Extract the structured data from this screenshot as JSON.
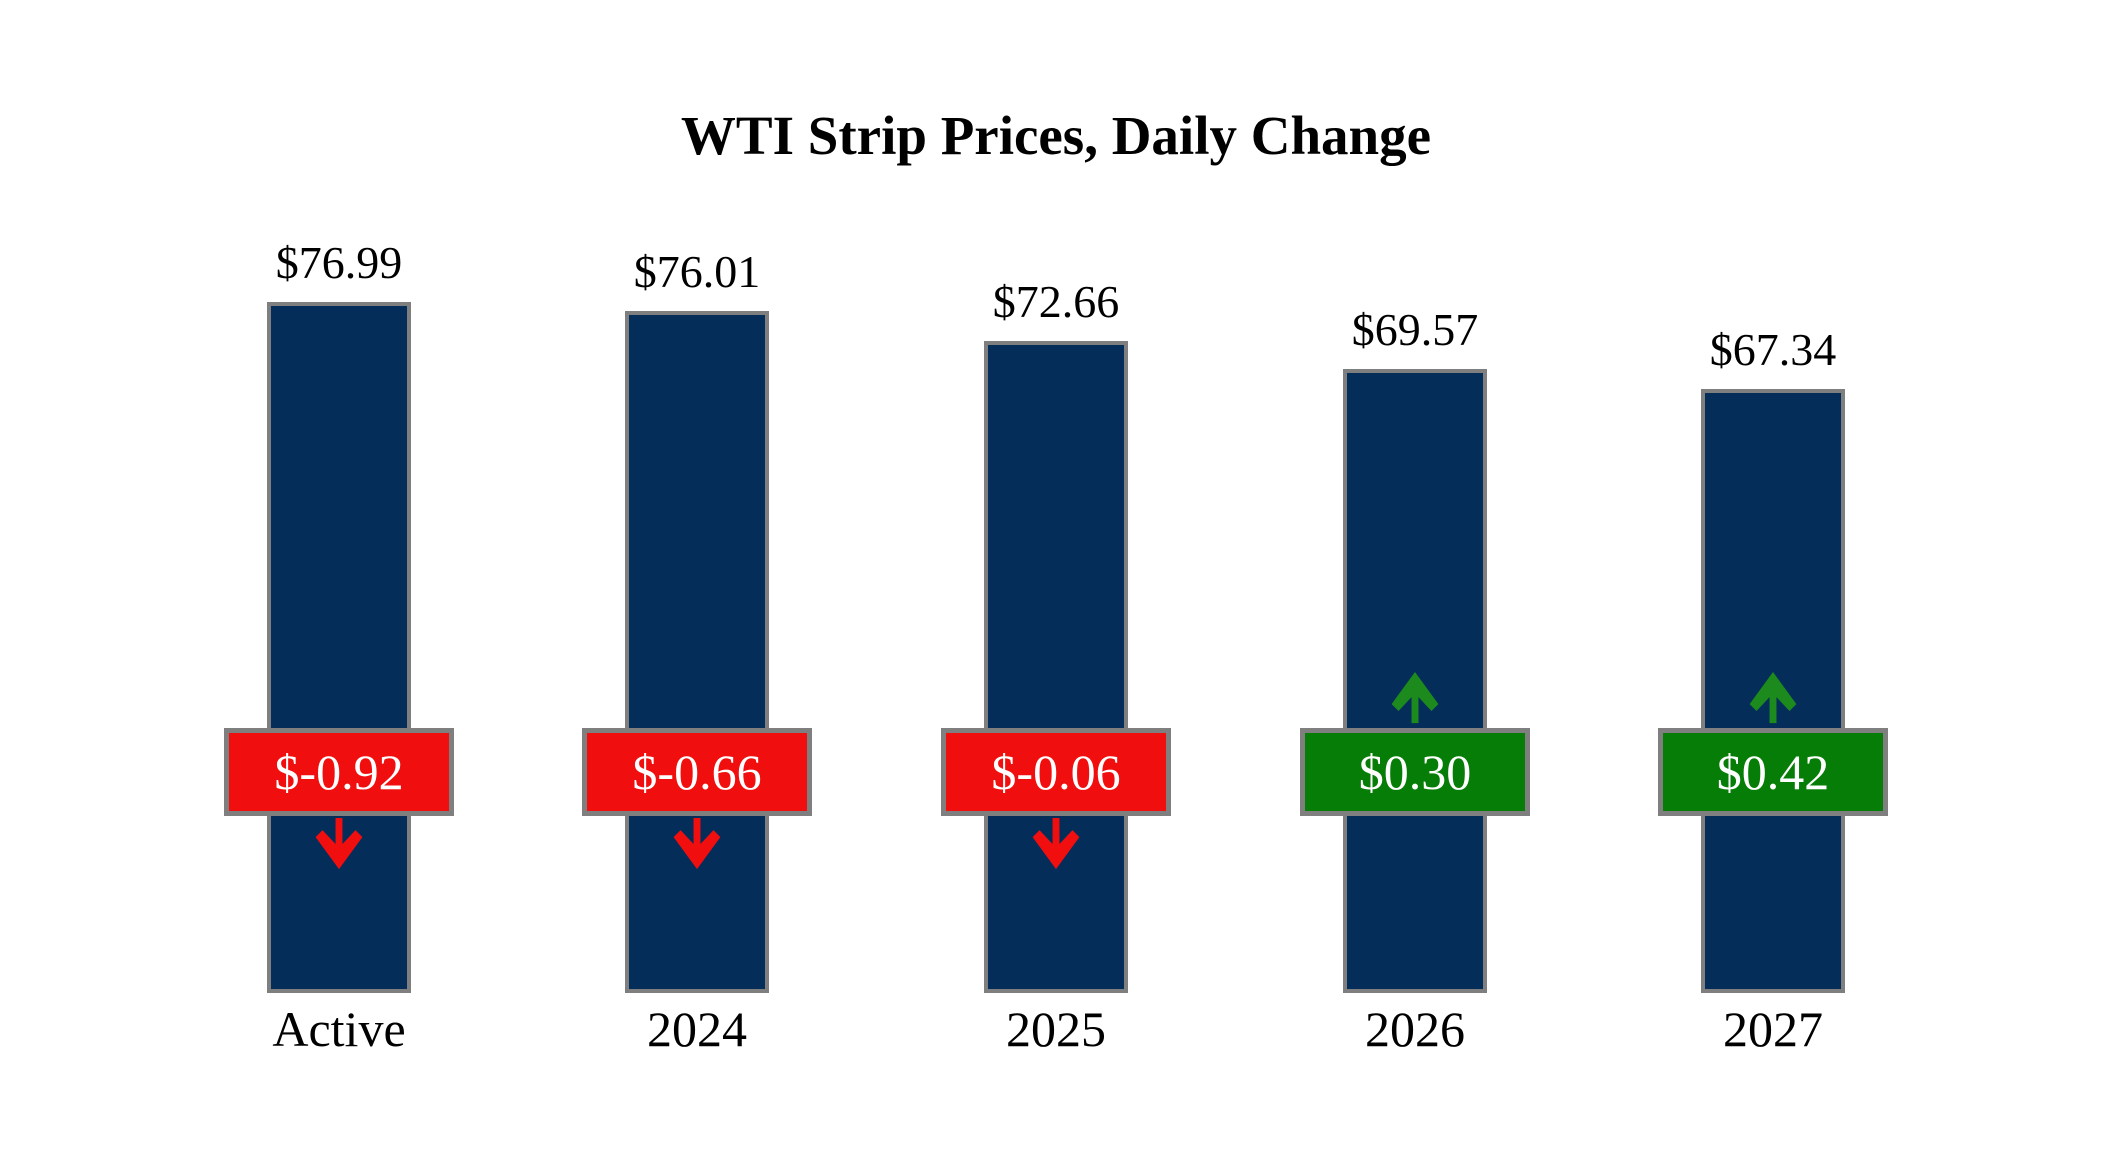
{
  "title": "WTI Strip Prices, Daily Change",
  "chart_data": {
    "type": "bar",
    "title": "WTI Strip Prices, Daily Change",
    "categories": [
      "Active",
      "2024",
      "2025",
      "2026",
      "2027"
    ],
    "series": [
      {
        "name": "WTI Strip Price",
        "values": [
          76.99,
          76.01,
          72.66,
          69.57,
          67.34
        ],
        "labels": [
          "$76.99",
          "$76.01",
          "$72.66",
          "$69.57",
          "$67.34"
        ]
      },
      {
        "name": "Daily Change",
        "values": [
          -0.92,
          -0.66,
          -0.06,
          0.3,
          0.42
        ],
        "labels": [
          "$-0.92",
          "$-0.66",
          "$-0.06",
          "$0.30",
          "$0.42"
        ]
      }
    ],
    "xlabel": "",
    "ylabel": "",
    "ylim": [
      0,
      77.5
    ],
    "grid": false,
    "axes_visible": false,
    "legend_position": "none",
    "annotations": {
      "negative_marker": "down-arrow",
      "positive_marker": "up-arrow"
    }
  },
  "colors": {
    "background": "#ffffff",
    "bar_fill": "#042d5a",
    "bar_border": "#7f7f7f",
    "negative_box": "#f10e0e",
    "positive_box": "#067d06",
    "negative_arrow": "#f10e0e",
    "positive_arrow": "#1d8a1d",
    "box_border": "#7f7f7f",
    "box_text": "#ffffff",
    "label_text": "#000000"
  }
}
